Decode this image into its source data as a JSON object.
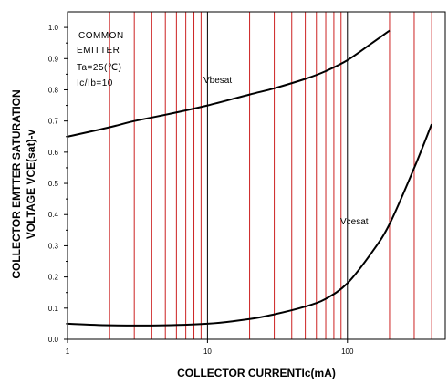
{
  "chart_data": {
    "type": "line",
    "x_scale": "log",
    "y_scale": "linear",
    "xlabel": "COLLECTOR CURRENTIc(mA)",
    "ylabel_lines": [
      "COLLECTOR EMTTER SATURATION",
      "VOLTAGE VCE(sat)-v"
    ],
    "xlim": [
      1,
      500
    ],
    "ylim": [
      0.0,
      1.05
    ],
    "x_ticks": [
      1,
      10,
      100
    ],
    "x_tick_labels": [
      "1",
      "10",
      "100"
    ],
    "y_ticks": [
      0.0,
      0.1,
      0.2,
      0.3,
      0.4,
      0.5,
      0.6,
      0.7,
      0.8,
      0.9,
      1.0
    ],
    "y_tick_labels": [
      "0.0",
      "0.1",
      "0.2",
      "0.3",
      "0.4",
      "0.5",
      "0.6",
      "0.7",
      "0.8",
      "0.9",
      "1.0"
    ],
    "grid": true,
    "grid_color": "#cc2222",
    "major_grid_color": "#000000",
    "annotations": [
      "COMMON",
      "EMITTER",
      "Ta=25(℃)",
      "Ic/Ib=10"
    ],
    "series": [
      {
        "name": "Vbesat",
        "x": [
          1,
          2,
          3,
          5,
          10,
          20,
          30,
          50,
          70,
          100,
          150,
          200
        ],
        "y": [
          0.65,
          0.68,
          0.7,
          0.72,
          0.75,
          0.785,
          0.805,
          0.835,
          0.86,
          0.895,
          0.95,
          0.99
        ]
      },
      {
        "name": "Vcesat",
        "x": [
          1,
          2,
          5,
          10,
          20,
          30,
          50,
          70,
          100,
          150,
          200,
          300,
          400
        ],
        "y": [
          0.05,
          0.045,
          0.045,
          0.05,
          0.065,
          0.08,
          0.105,
          0.13,
          0.18,
          0.28,
          0.37,
          0.55,
          0.69
        ]
      }
    ]
  }
}
